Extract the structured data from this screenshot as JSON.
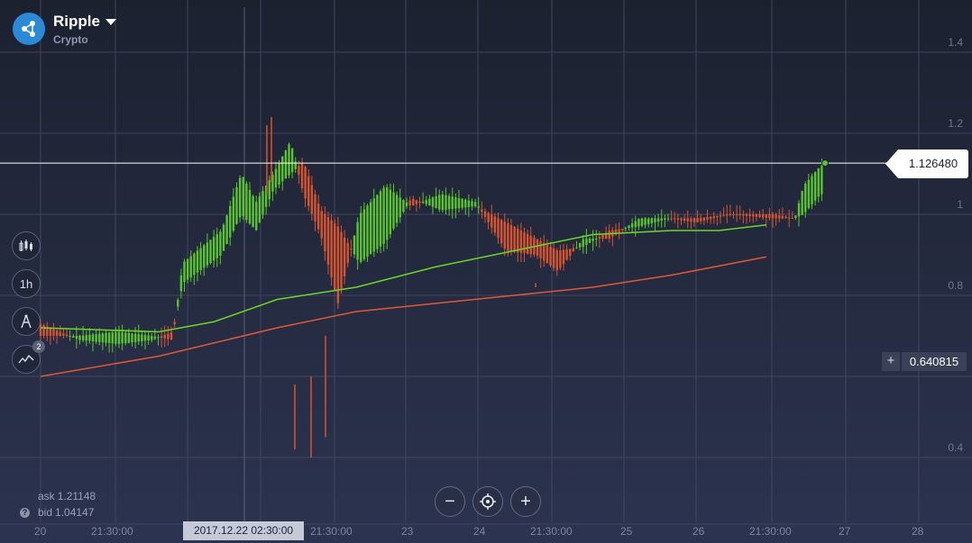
{
  "asset": {
    "name": "Ripple",
    "category": "Crypto",
    "icon": "ripple-logo-icon",
    "logo_color": "#2a8ad8"
  },
  "tools": [
    {
      "name": "chart-type-button",
      "icon": "candlestick-icon",
      "label": ""
    },
    {
      "name": "timeframe-button",
      "icon": "",
      "label": "1h"
    },
    {
      "name": "drawing-tools-button",
      "icon": "compass-icon",
      "label": ""
    },
    {
      "name": "indicators-button",
      "icon": "indicators-icon",
      "label": "",
      "badge": "2"
    }
  ],
  "y_axis_labels": [
    "1.4",
    "1.2",
    "1",
    "0.8",
    "0.4"
  ],
  "x_axis_labels": [
    "20",
    "21:30:00",
    "21:30:00",
    "23",
    "24",
    "21:30:00",
    "25",
    "26",
    "21:30:00",
    "27",
    "28"
  ],
  "current_price": "1.126480",
  "cursor_price": "0.640815",
  "cursor_date": "2017.12.22 02:30:00",
  "ask": {
    "label": "ask",
    "value": "1.21148"
  },
  "bid": {
    "label": "bid",
    "value": "1.04147"
  },
  "zoom": {
    "minus": "−",
    "plus": "+"
  },
  "colors": {
    "up": "#58c42f",
    "down": "#d8532e",
    "ma_fast": "#6ed62a",
    "ma_slow": "#dd5a35",
    "price_line": "#ffffff"
  },
  "chart_data": {
    "type": "candlestick",
    "ylim": [
      0.33,
      1.45
    ],
    "y_ticks": [
      1.4,
      1.2,
      1.0,
      0.8,
      0.4
    ],
    "current_price": 1.12648,
    "key_points": [
      [
        0.0,
        0.7,
        0.73
      ],
      [
        0.045,
        0.7,
        0.69
      ],
      [
        0.09,
        0.71,
        0.68
      ],
      [
        0.13,
        0.7,
        0.69
      ],
      [
        0.153,
        0.69,
        0.71
      ],
      [
        0.165,
        0.88,
        0.83
      ],
      [
        0.21,
        0.96,
        0.9
      ],
      [
        0.233,
        1.1,
        1.0
      ],
      [
        0.25,
        1.03,
        0.96
      ],
      [
        0.27,
        1.1,
        1.06
      ],
      [
        0.29,
        1.18,
        1.1
      ],
      [
        0.305,
        1.05,
        1.13
      ],
      [
        0.325,
        0.95,
        1.01
      ],
      [
        0.345,
        0.78,
        0.97
      ],
      [
        0.37,
        1.0,
        0.88
      ],
      [
        0.4,
        1.07,
        0.93
      ],
      [
        0.43,
        1.02,
        1.04
      ],
      [
        0.465,
        1.05,
        1.01
      ],
      [
        0.505,
        1.03,
        1.02
      ],
      [
        0.54,
        0.91,
        0.98
      ],
      [
        0.575,
        0.9,
        0.94
      ],
      [
        0.6,
        0.86,
        0.91
      ],
      [
        0.63,
        0.94,
        0.92
      ],
      [
        0.66,
        0.94,
        0.96
      ],
      [
        0.695,
        0.99,
        0.97
      ],
      [
        0.73,
        0.99,
        0.99
      ],
      [
        0.76,
        0.98,
        0.99
      ],
      [
        0.8,
        1.0,
        1.0
      ],
      [
        0.85,
        0.99,
        1.0
      ],
      [
        0.875,
        0.99,
        0.99
      ],
      [
        0.885,
        1.07,
        1.0
      ],
      [
        0.905,
        1.12,
        1.05
      ]
    ],
    "moving_averages": [
      {
        "name": "",
        "color": "#6ed62a",
        "points": [
          [
            0.0,
            0.72
          ],
          [
            0.15,
            0.71
          ],
          [
            0.22,
            0.735
          ],
          [
            0.3,
            0.79
          ],
          [
            0.4,
            0.82
          ],
          [
            0.5,
            0.87
          ],
          [
            0.6,
            0.91
          ],
          [
            0.7,
            0.95
          ],
          [
            0.8,
            0.96
          ],
          [
            0.86,
            0.96
          ],
          [
            0.92,
            0.974
          ]
        ]
      },
      {
        "name": "",
        "color": "#dd5a35",
        "points": [
          [
            0.0,
            0.6
          ],
          [
            0.15,
            0.65
          ],
          [
            0.3,
            0.72
          ],
          [
            0.4,
            0.76
          ],
          [
            0.5,
            0.78
          ],
          [
            0.6,
            0.8
          ],
          [
            0.7,
            0.82
          ],
          [
            0.8,
            0.85
          ],
          [
            0.92,
            0.895
          ]
        ]
      }
    ]
  }
}
